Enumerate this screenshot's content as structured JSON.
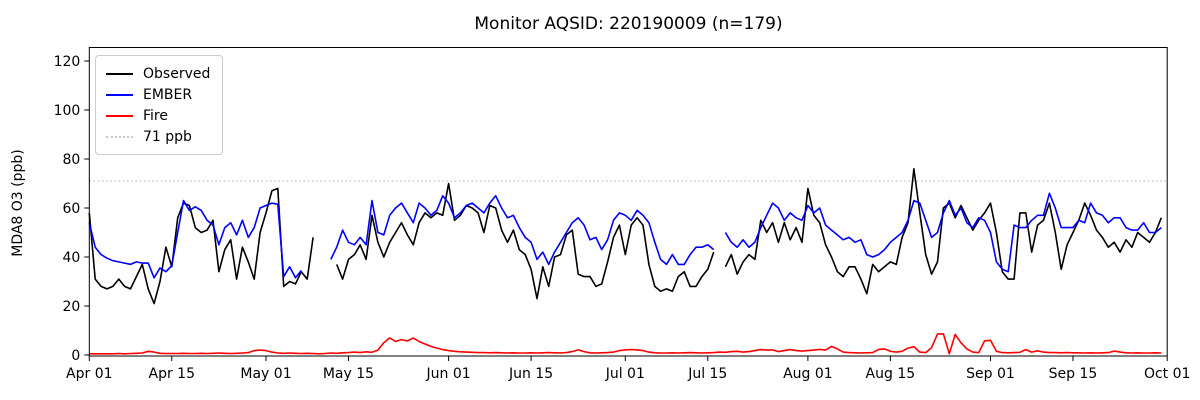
{
  "chart_data": {
    "type": "line",
    "title": "Monitor AQSID: 220190009 (n=179)",
    "ylabel": "MDA8 O3 (ppb)",
    "xlabel": "",
    "x_unit": "day",
    "x_start_label": "Apr 01",
    "x_end_label": "Oct 01",
    "ylim": [
      -0.5,
      125.5
    ],
    "yticks": [
      0,
      20,
      40,
      60,
      80,
      100,
      120
    ],
    "grid": false,
    "legend_position": "upper left",
    "xticks": [
      {
        "day": 0,
        "label": "Apr 01"
      },
      {
        "day": 14,
        "label": "Apr 15"
      },
      {
        "day": 30,
        "label": "May 01"
      },
      {
        "day": 44,
        "label": "May 15"
      },
      {
        "day": 61,
        "label": "Jun 01"
      },
      {
        "day": 75,
        "label": "Jun 15"
      },
      {
        "day": 91,
        "label": "Jul 01"
      },
      {
        "day": 105,
        "label": "Jul 15"
      },
      {
        "day": 122,
        "label": "Aug 01"
      },
      {
        "day": 136,
        "label": "Aug 15"
      },
      {
        "day": 153,
        "label": "Sep 01"
      },
      {
        "day": 167,
        "label": "Sep 15"
      },
      {
        "day": 183,
        "label": "Oct 01"
      }
    ],
    "threshold": {
      "label": "71 ppb",
      "value": 71,
      "color": "#c8c8c8",
      "style": "dotted"
    },
    "series": [
      {
        "name": "Observed",
        "color": "#000000",
        "style": "solid",
        "values": [
          58,
          31,
          28,
          27,
          28,
          31,
          28,
          27,
          32,
          37,
          27,
          21,
          30,
          44,
          36,
          56,
          62,
          61,
          52,
          50,
          51,
          55,
          34,
          43,
          47,
          31,
          44,
          38,
          31,
          50,
          58,
          67,
          68,
          28,
          30,
          29,
          34,
          31,
          48,
          null,
          null,
          null,
          37,
          31,
          39,
          41,
          45,
          39,
          57,
          46,
          40,
          46,
          50,
          54,
          49,
          45,
          54,
          58,
          56,
          58,
          57,
          70,
          55,
          57,
          61,
          60,
          58,
          50,
          61,
          60,
          51,
          46,
          51,
          43,
          41,
          35,
          23,
          36,
          28,
          40,
          41,
          49,
          51,
          33,
          32,
          32,
          28,
          29,
          38,
          48,
          53,
          41,
          53,
          56,
          53,
          37,
          28,
          26,
          27,
          26,
          32,
          34,
          28,
          28,
          32,
          35,
          42,
          null,
          36,
          41,
          33,
          38,
          41,
          39,
          55,
          50,
          54,
          46,
          54,
          47,
          52,
          46,
          68,
          57,
          54,
          45,
          40,
          34,
          32,
          36,
          36,
          31,
          25,
          37,
          34,
          36,
          38,
          37,
          48,
          54,
          76,
          58,
          41,
          33,
          38,
          60,
          62,
          56,
          61,
          56,
          51,
          55,
          58,
          62,
          50,
          34,
          31,
          31,
          58,
          58,
          42,
          53,
          55,
          62,
          50,
          35,
          45,
          50,
          55,
          62,
          57,
          51,
          48,
          44,
          46,
          42,
          47,
          44,
          50,
          48,
          46,
          50,
          56
        ]
      },
      {
        "name": "EMBER",
        "color": "#0000ff",
        "style": "solid",
        "values": [
          54,
          44,
          41,
          39.5,
          38.5,
          38,
          37.5,
          37,
          38,
          37.5,
          37.5,
          31.5,
          35.5,
          34,
          36.5,
          50,
          63,
          59,
          60.5,
          59,
          55,
          53,
          45,
          52,
          54,
          49,
          55,
          48,
          52,
          60,
          61,
          62,
          61.5,
          32,
          36,
          31.5,
          34.5,
          null,
          null,
          null,
          null,
          39,
          44,
          51,
          46,
          45,
          48,
          45,
          63,
          50,
          49,
          57,
          60,
          62,
          58,
          54,
          62,
          60,
          57,
          59,
          65,
          62,
          56,
          58,
          61,
          62,
          60,
          58,
          62,
          65,
          60,
          56,
          57,
          52,
          48,
          46,
          39,
          42,
          37,
          42,
          46,
          50,
          54,
          56,
          53,
          47,
          48,
          43,
          47,
          55,
          58,
          57,
          55,
          59,
          57,
          54,
          46,
          39,
          37,
          41,
          37,
          37,
          41,
          44,
          44,
          45,
          43,
          null,
          50,
          46,
          44,
          47,
          44,
          46,
          52,
          57,
          62,
          60,
          55,
          58,
          56,
          55,
          61,
          58,
          60,
          53,
          51,
          49,
          47,
          48,
          46,
          47,
          41,
          40,
          41,
          43,
          46,
          48,
          50,
          55,
          63,
          62,
          55,
          48,
          50,
          58,
          63,
          57,
          60,
          54,
          52,
          56,
          55,
          50,
          38,
          35,
          34,
          53,
          52,
          52,
          55,
          57,
          57,
          66,
          60,
          52,
          52,
          52,
          55,
          54,
          62,
          58,
          57,
          54,
          56,
          56,
          52,
          51,
          51,
          54,
          50,
          50,
          52
        ]
      },
      {
        "name": "Fire",
        "color": "#ff0000",
        "style": "solid",
        "values": [
          0.5,
          0.5,
          0.5,
          0.5,
          0.5,
          0.6,
          0.5,
          0.6,
          0.7,
          0.8,
          1.5,
          1.2,
          0.7,
          0.6,
          0.6,
          0.6,
          0.7,
          0.6,
          0.6,
          0.7,
          0.6,
          0.7,
          0.8,
          0.7,
          0.6,
          0.7,
          0.8,
          1.0,
          1.8,
          2.0,
          1.8,
          1.2,
          0.8,
          0.7,
          0.8,
          0.7,
          0.6,
          0.7,
          0.6,
          0.5,
          0.6,
          0.8,
          0.7,
          0.9,
          1.0,
          1.2,
          1.0,
          1.3,
          1.1,
          2.0,
          5.0,
          7.0,
          5.5,
          6.3,
          5.7,
          7.0,
          5.5,
          4.5,
          3.5,
          2.8,
          2.2,
          1.8,
          1.5,
          1.3,
          1.2,
          1.1,
          1.0,
          1.0,
          0.9,
          1.0,
          0.9,
          0.8,
          0.9,
          0.8,
          0.8,
          0.9,
          0.8,
          0.9,
          1.0,
          0.9,
          0.8,
          1.0,
          1.4,
          2.1,
          1.4,
          0.9,
          0.8,
          0.9,
          1.0,
          1.2,
          1.8,
          2.1,
          2.2,
          2.1,
          1.8,
          1.2,
          0.9,
          0.8,
          0.8,
          0.9,
          0.8,
          0.9,
          1.0,
          0.9,
          0.8,
          0.9,
          1.0,
          1.2,
          1.1,
          1.4,
          1.5,
          1.2,
          1.4,
          1.8,
          2.2,
          2.0,
          2.1,
          1.4,
          1.8,
          2.2,
          1.8,
          1.6,
          1.8,
          2.0,
          2.3,
          2.0,
          3.5,
          2.5,
          1.2,
          1.0,
          0.9,
          0.8,
          0.9,
          1.0,
          2.3,
          2.5,
          1.5,
          1.2,
          1.5,
          2.8,
          3.4,
          1.2,
          1.0,
          3.0,
          8.6,
          8.6,
          0.5,
          8.4,
          5.0,
          2.5,
          1.2,
          1.0,
          5.8,
          6.0,
          1.5,
          1.0,
          0.9,
          1.0,
          1.1,
          2.2,
          1.2,
          1.7,
          1.2,
          1.0,
          1.0,
          0.9,
          1.0,
          0.9,
          0.9,
          0.8,
          0.9,
          0.8,
          0.9,
          1.0,
          1.6,
          1.2,
          0.9,
          0.8,
          0.9,
          0.8,
          0.8,
          0.9,
          0.8
        ]
      }
    ]
  }
}
